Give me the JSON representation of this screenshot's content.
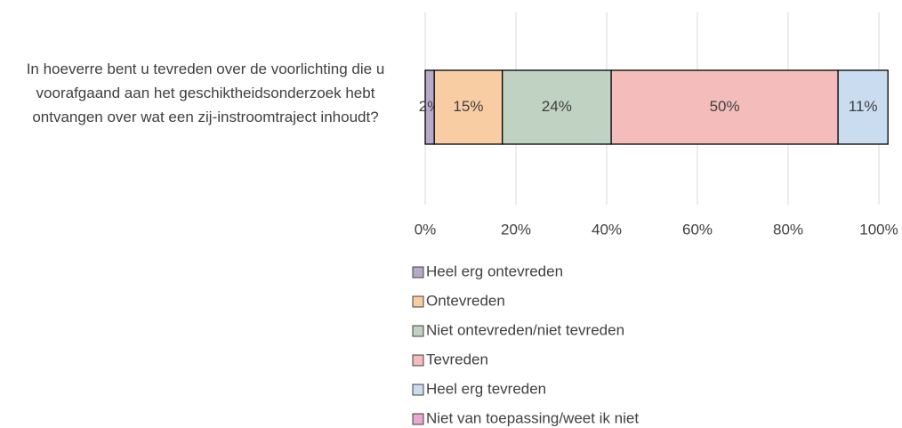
{
  "chart_data": {
    "type": "stacked-bar-horizontal",
    "categories": [
      "In hoeverre bent u tevreden over de voorlichting die u voorafgaand aan het geschiktheidsonderzoek hebt ontvangen over wat een zij-instroomtraject inhoudt?"
    ],
    "series": [
      {
        "name": "Heel erg ontevreden",
        "color": "#b7a9c9",
        "values": [
          2
        ],
        "value_labels": [
          "2%"
        ]
      },
      {
        "name": "Ontevreden",
        "color": "#f8cda4",
        "values": [
          15
        ],
        "value_labels": [
          "15%"
        ]
      },
      {
        "name": "Niet ontevreden/niet tevreden",
        "color": "#c0d2c1",
        "values": [
          24
        ],
        "value_labels": [
          "24%"
        ]
      },
      {
        "name": "Tevreden",
        "color": "#f4bdbb",
        "values": [
          50
        ],
        "value_labels": [
          "50%"
        ]
      },
      {
        "name": "Heel erg tevreden",
        "color": "#cadcf0",
        "values": [
          11
        ],
        "value_labels": [
          "11%"
        ]
      },
      {
        "name": "Niet van toepassing/weet ik niet",
        "color": "#e9a8d0",
        "values": [
          0
        ]
      }
    ],
    "xlim": [
      0,
      100
    ],
    "xticks": [
      {
        "value": 0,
        "label": "0%"
      },
      {
        "value": 20,
        "label": "20%"
      },
      {
        "value": 40,
        "label": "40%"
      },
      {
        "value": 60,
        "label": "60%"
      },
      {
        "value": 80,
        "label": "80%"
      },
      {
        "value": 100,
        "label": "100%"
      }
    ],
    "grid": true,
    "legend": "bottom"
  }
}
